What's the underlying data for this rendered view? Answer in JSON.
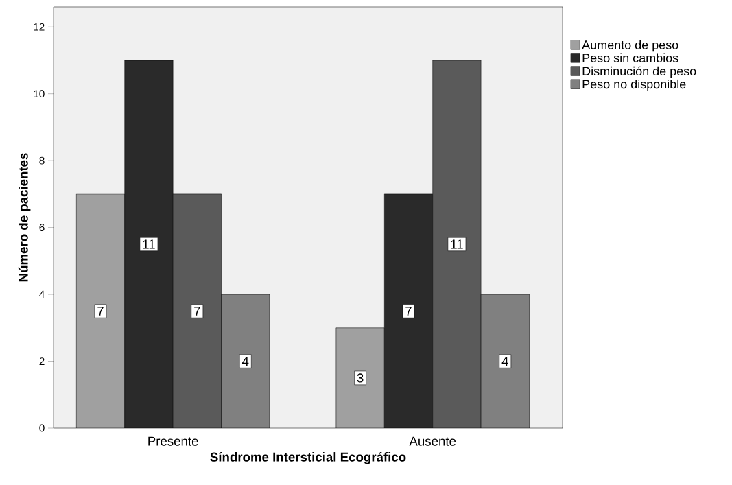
{
  "chart_data": {
    "type": "bar",
    "xlabel": "Síndrome Intersticial Ecográfico",
    "ylabel": "Número de pacientes",
    "categories": [
      "Presente",
      "Ausente"
    ],
    "series": [
      {
        "name": "Aumento de peso",
        "color": "#a0a0a0",
        "values": [
          7,
          3
        ],
        "value_labels": [
          "7",
          "3"
        ]
      },
      {
        "name": "Peso sin cambios",
        "color": "#2a2a2a",
        "values": [
          11,
          7
        ],
        "value_labels": [
          "11",
          "7"
        ]
      },
      {
        "name": "Disminución de peso",
        "color": "#5a5a5a",
        "values": [
          7,
          11
        ],
        "value_labels": [
          "7",
          "11"
        ]
      },
      {
        "name": "Peso no disponible",
        "color": "#808080",
        "values": [
          4,
          4
        ],
        "value_labels": [
          "4",
          "4"
        ]
      }
    ],
    "ylim": [
      0,
      12.6
    ],
    "yticks": [
      0,
      2,
      4,
      6,
      8,
      10,
      12
    ],
    "legend": "right"
  }
}
